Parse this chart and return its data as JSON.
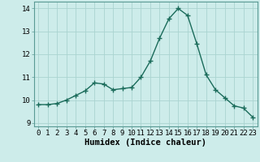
{
  "x": [
    0,
    1,
    2,
    3,
    4,
    5,
    6,
    7,
    8,
    9,
    10,
    11,
    12,
    13,
    14,
    15,
    16,
    17,
    18,
    19,
    20,
    21,
    22,
    23
  ],
  "y": [
    9.8,
    9.8,
    9.85,
    10.0,
    10.2,
    10.4,
    10.75,
    10.7,
    10.45,
    10.5,
    10.55,
    11.0,
    11.7,
    12.7,
    13.55,
    14.0,
    13.7,
    12.45,
    11.1,
    10.45,
    10.1,
    9.75,
    9.65,
    9.25
  ],
  "line_color": "#1a6b5a",
  "marker": "+",
  "marker_size": 4,
  "linewidth": 1.0,
  "bg_color": "#cdecea",
  "grid_color": "#aad4d0",
  "xlabel": "Humidex (Indice chaleur)",
  "xlim": [
    -0.5,
    23.5
  ],
  "ylim": [
    8.85,
    14.3
  ],
  "yticks": [
    9,
    10,
    11,
    12,
    13,
    14
  ],
  "xticks": [
    0,
    1,
    2,
    3,
    4,
    5,
    6,
    7,
    8,
    9,
    10,
    11,
    12,
    13,
    14,
    15,
    16,
    17,
    18,
    19,
    20,
    21,
    22,
    23
  ],
  "tick_fontsize": 6.5,
  "xlabel_fontsize": 7.5
}
